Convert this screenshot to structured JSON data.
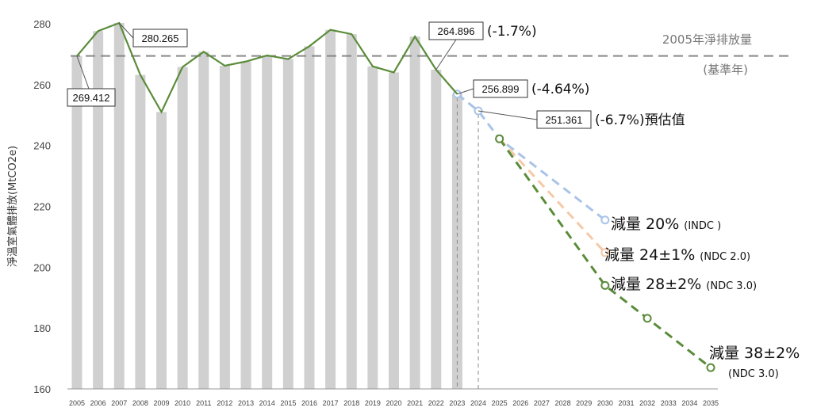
{
  "chart_data": {
    "type": "bar",
    "ylabel": "淨溫室氣體排放(MtCO2e)",
    "ylim": [
      160,
      280
    ],
    "yticks": [
      160,
      180,
      200,
      220,
      240,
      260,
      280
    ],
    "categories": [
      "2005",
      "2006",
      "2007",
      "2008",
      "2009",
      "2010",
      "2011",
      "2012",
      "2013",
      "2014",
      "2015",
      "2016",
      "2017",
      "2018",
      "2019",
      "2020",
      "2021",
      "2022",
      "2023",
      "2024",
      "2025",
      "2026",
      "2027",
      "2028",
      "2029",
      "2030",
      "2031",
      "2032",
      "2033",
      "2034",
      "2035"
    ],
    "bars": [
      269.412,
      277.6,
      280.265,
      263.2,
      251.0,
      265.8,
      270.8,
      266.2,
      267.6,
      269.6,
      268.4,
      272.6,
      278.0,
      276.6,
      266.0,
      264.0,
      275.8,
      264.896,
      256.899
    ],
    "actual_series": {
      "name": "",
      "color": "#5b8c3a",
      "values": [
        269.412,
        277.6,
        280.265,
        263.2,
        251.0,
        265.8,
        270.8,
        266.2,
        267.6,
        269.6,
        268.4,
        272.6,
        278.0,
        276.6,
        266.0,
        264.0,
        275.8,
        264.896,
        256.899
      ]
    },
    "baseline": {
      "value": 269.412,
      "label": "2005年淨排放量",
      "sublabel": "(基準年)",
      "color": "#888888"
    },
    "projections": [
      {
        "color": "#a9c4e8",
        "points": [
          [
            "2023",
            256.899
          ],
          [
            "2024",
            251.361
          ],
          [
            "2025",
            242.2
          ],
          [
            "2030",
            215.5
          ]
        ],
        "label_main": "減量 20%",
        "label_sub": "(INDC )"
      },
      {
        "color": "#f5c9a8",
        "points": [
          [
            "2025",
            242.2
          ],
          [
            "2030",
            204.8
          ]
        ],
        "label_main": "減量 24±1%",
        "label_sub": "(NDC 2.0)"
      },
      {
        "color": "#5b8c3a",
        "points": [
          [
            "2025",
            242.2
          ],
          [
            "2030",
            194.0
          ],
          [
            "2032",
            183.2
          ],
          [
            "2035",
            167.0
          ]
        ],
        "label_main": "減量 28±2%",
        "label_sub": "(NDC 3.0)"
      }
    ],
    "target_2035": {
      "label_main": "減量 38±2%",
      "label_sub": "(NDC 3.0)"
    },
    "annotations": [
      {
        "value_text": "269.412",
        "extra": ""
      },
      {
        "value_text": "280.265",
        "extra": ""
      },
      {
        "value_text": "264.896",
        "extra": "(-1.7%)"
      },
      {
        "value_text": "256.899",
        "extra": "(-4.64%)"
      },
      {
        "value_text": "251.361",
        "extra": "(-6.7%)預估值"
      }
    ],
    "bar_color": "#d0d0d0",
    "grid": false
  }
}
